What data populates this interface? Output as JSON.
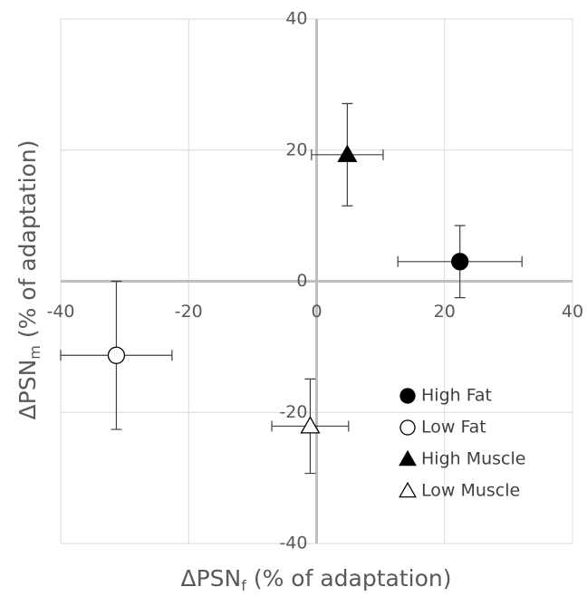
{
  "chart_data": {
    "type": "scatter",
    "xlabel": {
      "main": "ΔPSN",
      "sub": "f",
      "rest": " (% of adaptation)"
    },
    "ylabel": {
      "main": "ΔPSN",
      "sub": "m",
      "rest": " (% of adaptation)"
    },
    "xlim": [
      -40,
      40
    ],
    "ylim": [
      -40,
      40
    ],
    "xticks": [
      -40,
      -20,
      0,
      20,
      40
    ],
    "yticks": [
      -40,
      -20,
      0,
      20,
      40
    ],
    "grid": true,
    "legend": "lower right",
    "series": [
      {
        "name": "High Fat",
        "marker": "circle",
        "color": "#000000",
        "fill": "#000000",
        "x": [
          22.4
        ],
        "y": [
          3.0
        ],
        "xerr": [
          9.7
        ],
        "yerr": [
          5.5
        ]
      },
      {
        "name": "Low Fat",
        "marker": "circle",
        "color": "#000000",
        "fill": "#ffffff",
        "x": [
          -31.3
        ],
        "y": [
          -11.3
        ],
        "xerr": [
          8.7
        ],
        "yerr": [
          11.3
        ]
      },
      {
        "name": "High Muscle",
        "marker": "triangle",
        "color": "#000000",
        "fill": "#000000",
        "x": [
          4.8
        ],
        "y": [
          19.3
        ],
        "xerr": [
          5.6
        ],
        "yerr": [
          7.8
        ]
      },
      {
        "name": "Low Muscle",
        "marker": "triangle",
        "color": "#000000",
        "fill": "#ffffff",
        "x": [
          -1.0
        ],
        "y": [
          -22.1
        ],
        "xerr": [
          6.0
        ],
        "yerr": [
          7.2
        ]
      }
    ]
  }
}
